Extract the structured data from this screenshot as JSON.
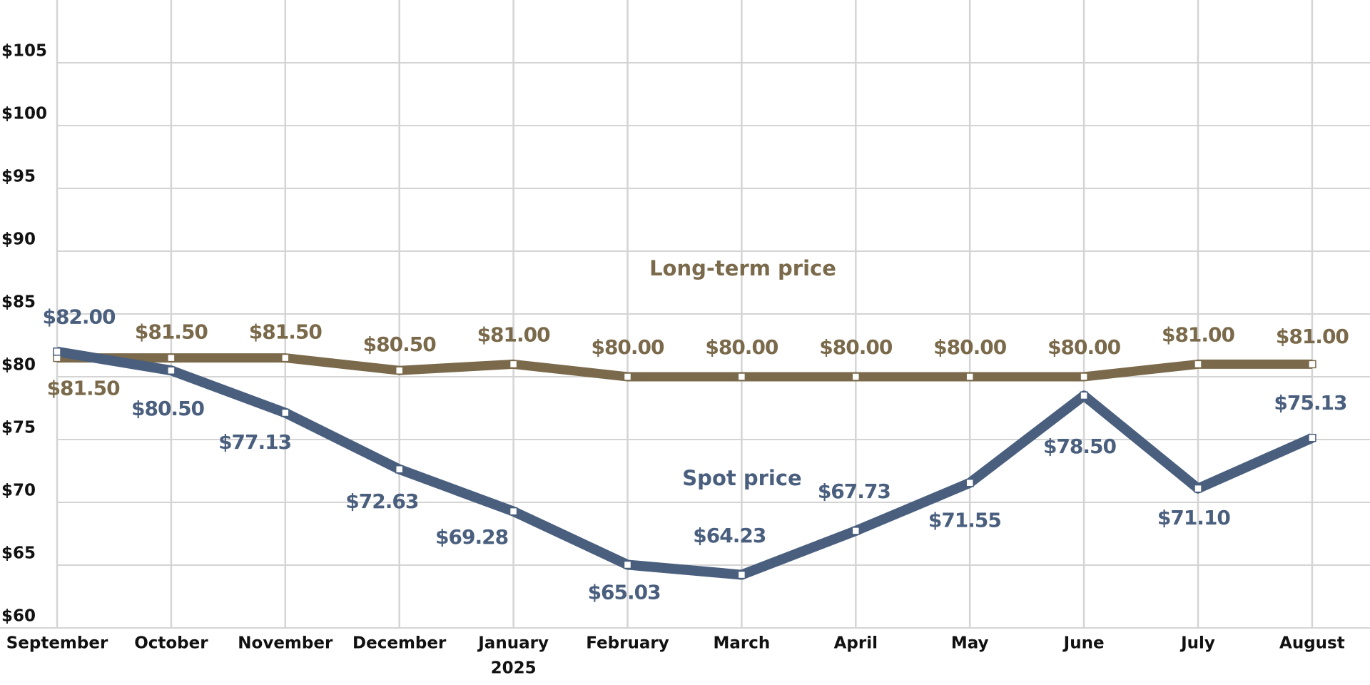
{
  "chart_data": {
    "type": "line",
    "categories": [
      "September",
      "October",
      "November",
      "December",
      "January",
      "February",
      "March",
      "April",
      "May",
      "June",
      "July",
      "August"
    ],
    "year_label": "2025",
    "series": [
      {
        "name": "Long-term price",
        "color": "#7a6a4b",
        "values": [
          81.5,
          81.5,
          81.5,
          80.5,
          81.0,
          80.0,
          80.0,
          80.0,
          80.0,
          80.0,
          81.0,
          81.0
        ],
        "value_labels": [
          "$81.50",
          "$81.50",
          "$81.50",
          "$80.50",
          "$81.00",
          "$80.00",
          "$80.00",
          "$80.00",
          "$80.00",
          "$80.00",
          "$81.00",
          "$81.00"
        ]
      },
      {
        "name": "Spot price",
        "color": "#4a5f7e",
        "values": [
          82.0,
          80.5,
          77.13,
          72.63,
          69.28,
          65.03,
          64.23,
          67.73,
          71.55,
          78.5,
          71.1,
          75.13
        ],
        "value_labels": [
          "$82.00",
          "$80.50",
          "$77.13",
          "$72.63",
          "$69.28",
          "$65.03",
          "$64.23",
          "$67.73",
          "$71.55",
          "$78.50",
          "$71.10",
          "$75.13"
        ]
      }
    ],
    "ylim": [
      60,
      110
    ],
    "yticks": [
      {
        "value": 60,
        "label": "$60"
      },
      {
        "value": 65,
        "label": "$65"
      },
      {
        "value": 70,
        "label": "$70"
      },
      {
        "value": 75,
        "label": "$75"
      },
      {
        "value": 80,
        "label": "$80"
      },
      {
        "value": 85,
        "label": "$85"
      },
      {
        "value": 90,
        "label": "$90"
      },
      {
        "value": 95,
        "label": "$95"
      },
      {
        "value": 100,
        "label": "$100"
      },
      {
        "value": 105,
        "label": "$105"
      }
    ],
    "grid": true
  }
}
